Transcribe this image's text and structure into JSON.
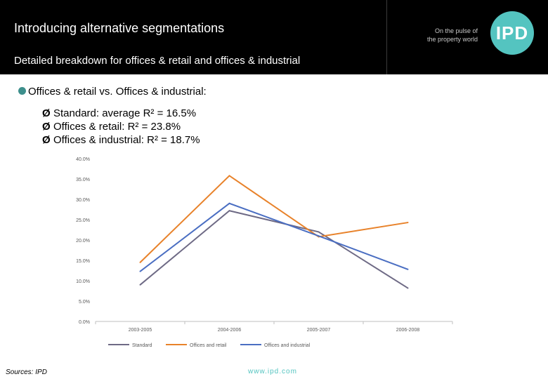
{
  "header": {
    "title": "Introducing alternative segmentations",
    "subtitle": "Detailed breakdown for offices & retail and offices & industrial",
    "tagline_1": "On the pulse of",
    "tagline_2": "the property world",
    "logo_text": "IPD"
  },
  "bullets": {
    "main": "Offices & retail vs. Offices & industrial:",
    "items": [
      "Standard: average R² = 16.5%",
      "Offices & retail: R² = 23.8%",
      "Offices & industrial: R² = 18.7%"
    ]
  },
  "colors": {
    "accent": "#54c4c0",
    "header_bg": "#000000"
  },
  "chart_data": {
    "type": "line",
    "categories": [
      "2003-2005",
      "2004-2006",
      "2005-2007",
      "2006-2008"
    ],
    "ylim": [
      0,
      40
    ],
    "yticks": [
      "0.0%",
      "5.0%",
      "10.0%",
      "15.0%",
      "20.0%",
      "25.0%",
      "30.0%",
      "35.0%",
      "40.0%"
    ],
    "grid": false,
    "legend_position": "bottom",
    "series": [
      {
        "name": "Standard",
        "color": "#6e6a85",
        "values": [
          9.0,
          27.2,
          22.0,
          8.2
        ]
      },
      {
        "name": "Offices and retail",
        "color": "#e8822a",
        "values": [
          14.5,
          35.8,
          20.8,
          24.3
        ]
      },
      {
        "name": "Offices and industrial",
        "color": "#4a6ec2",
        "values": [
          12.3,
          29.0,
          21.0,
          12.8
        ]
      }
    ]
  },
  "footer": {
    "sources": "Sources: IPD",
    "website": "www.ipd.com"
  }
}
